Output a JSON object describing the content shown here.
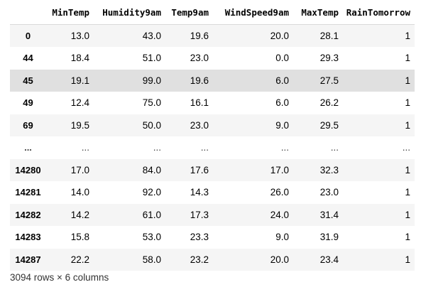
{
  "dataframe": {
    "columns": [
      "MinTemp",
      "Humidity9am",
      "Temp9am",
      "WindSpeed9am",
      "MaxTemp",
      "RainTomorrow"
    ],
    "rows": [
      {
        "index": "0",
        "values": [
          "13.0",
          "43.0",
          "19.6",
          "20.0",
          "28.1",
          "1"
        ]
      },
      {
        "index": "44",
        "values": [
          "18.4",
          "51.0",
          "23.0",
          "0.0",
          "29.3",
          "1"
        ]
      },
      {
        "index": "45",
        "values": [
          "19.1",
          "99.0",
          "19.6",
          "6.0",
          "27.5",
          "1"
        ]
      },
      {
        "index": "49",
        "values": [
          "12.4",
          "75.0",
          "16.1",
          "6.0",
          "26.2",
          "1"
        ]
      },
      {
        "index": "69",
        "values": [
          "19.5",
          "50.0",
          "23.0",
          "9.0",
          "29.5",
          "1"
        ]
      },
      {
        "index": "...",
        "values": [
          "...",
          "...",
          "...",
          "...",
          "...",
          "..."
        ]
      },
      {
        "index": "14280",
        "values": [
          "17.0",
          "84.0",
          "17.6",
          "17.0",
          "32.3",
          "1"
        ]
      },
      {
        "index": "14281",
        "values": [
          "14.0",
          "92.0",
          "14.3",
          "26.0",
          "23.0",
          "1"
        ]
      },
      {
        "index": "14282",
        "values": [
          "14.2",
          "61.0",
          "17.3",
          "24.0",
          "31.4",
          "1"
        ]
      },
      {
        "index": "14283",
        "values": [
          "15.8",
          "53.0",
          "23.3",
          "9.0",
          "31.9",
          "1"
        ]
      },
      {
        "index": "14287",
        "values": [
          "22.2",
          "58.0",
          "23.2",
          "20.0",
          "23.4",
          "1"
        ]
      }
    ],
    "hovered_row": 2,
    "shape_text": "3094 rows × 6 columns"
  },
  "colors": {
    "row_odd": "#f5f5f5",
    "row_even": "#ffffff",
    "row_hover": "#e0e0e0",
    "text": "#000000"
  }
}
